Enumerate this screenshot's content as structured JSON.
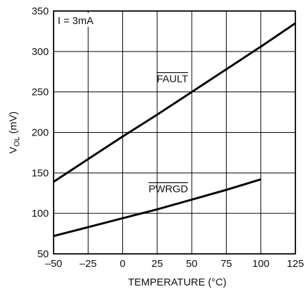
{
  "chart_data": {
    "type": "line",
    "xlabel": "TEMPERATURE (°C)",
    "ylabel_main": "V",
    "ylabel_sub": "OL",
    "ylabel_unit": " (mV)",
    "xlim": [
      -50,
      125
    ],
    "ylim": [
      50,
      350
    ],
    "xticks": [
      -50,
      -25,
      0,
      25,
      50,
      75,
      100,
      125
    ],
    "xtick_labels": [
      "–50",
      "–25",
      "0",
      "25",
      "50",
      "75",
      "100",
      "125"
    ],
    "yticks": [
      50,
      100,
      150,
      200,
      250,
      300,
      350
    ],
    "ytick_labels": [
      "50",
      "100",
      "150",
      "200",
      "250",
      "300",
      "350"
    ],
    "grid": true,
    "condition": "I = 3mA",
    "series": [
      {
        "name": "FAULT",
        "overbar": true,
        "x": [
          -50,
          -25,
          0,
          25,
          50,
          75,
          100,
          125
        ],
        "y": [
          139,
          167,
          195,
          222,
          250,
          278,
          306,
          335
        ]
      },
      {
        "name": "PWRGD",
        "overbar": true,
        "x": [
          -50,
          -25,
          0,
          25,
          50,
          75,
          100
        ],
        "y": [
          72,
          83,
          94,
          105,
          117,
          129,
          142
        ]
      }
    ],
    "label_anchor": [
      {
        "x": 36,
        "y": 262
      },
      {
        "x": 33,
        "y": 126
      }
    ]
  }
}
